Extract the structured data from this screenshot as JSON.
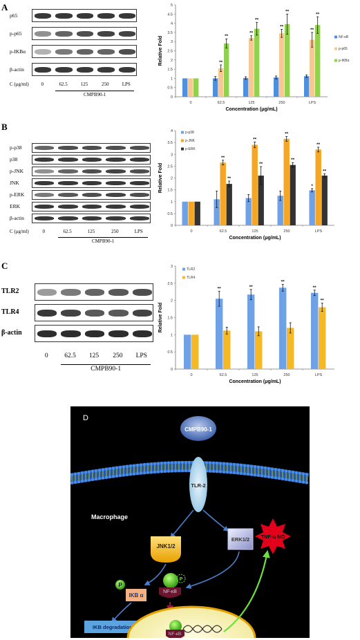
{
  "panelA": {
    "letter": "A",
    "blots": [
      {
        "label": "p65"
      },
      {
        "label": "p-p65"
      },
      {
        "label": "p-IKBα"
      },
      {
        "label": "β-actin"
      }
    ],
    "lanes": {
      "axis_label": "C (μg/ml)",
      "values": [
        "0",
        "62.5",
        "125",
        "250",
        "LPS"
      ],
      "group_label": "CMPB90-1"
    }
  },
  "panelB": {
    "letter": "B",
    "blots": [
      {
        "label": "p-p38"
      },
      {
        "label": "p38"
      },
      {
        "label": "p-JNK"
      },
      {
        "label": "JNK"
      },
      {
        "label": "p-ERK"
      },
      {
        "label": "ERK"
      },
      {
        "label": "β-actin"
      }
    ],
    "lanes": {
      "axis_label": "C (μg/ml)",
      "values": [
        "0",
        "62.5",
        "125",
        "250",
        "LPS"
      ],
      "group_label": "CMPB90-1"
    }
  },
  "panelC": {
    "letter": "C",
    "blots": [
      {
        "label": "TLR2"
      },
      {
        "label": "TLR4"
      },
      {
        "label": "β-actin"
      }
    ],
    "lanes": {
      "values": [
        "0",
        "62.5",
        "125",
        "250",
        "LPS"
      ],
      "group_label": "CMPB90-1"
    }
  },
  "chart_data": [
    {
      "type": "bar",
      "categories": [
        "0",
        "62.5",
        "125",
        "250",
        "LPS"
      ],
      "xlabel": "Concentration (μg/mL)",
      "ylabel": "Relative Fold",
      "ylim": [
        0,
        5
      ],
      "yticks": [
        "0",
        "0.5",
        "1",
        "1.5",
        "2",
        "2.5",
        "3",
        "3.5",
        "4",
        "4.5",
        "5"
      ],
      "legend_position": "right",
      "series": [
        {
          "name": "NF-κB",
          "color": "#4f8fe0",
          "values": [
            1,
            1.0,
            1.02,
            1.05,
            1.12
          ],
          "errors": [
            0,
            0.1,
            0.07,
            0.08,
            0.07
          ],
          "sig": [
            "",
            "",
            "",
            "",
            ""
          ]
        },
        {
          "name": "p-p65",
          "color": "#f5c896",
          "values": [
            1,
            1.55,
            3.2,
            3.45,
            3.1
          ],
          "errors": [
            0,
            0.18,
            0.12,
            0.22,
            0.4
          ],
          "sig": [
            "",
            "**",
            "**",
            "**",
            "**"
          ]
        },
        {
          "name": "p-IKBα",
          "color": "#92d050",
          "values": [
            1,
            2.9,
            3.7,
            3.95,
            3.9
          ],
          "errors": [
            0,
            0.25,
            0.35,
            0.55,
            0.45
          ],
          "sig": [
            "",
            "**",
            "**",
            "**",
            "**"
          ]
        }
      ]
    },
    {
      "type": "bar",
      "categories": [
        "0",
        "62.5",
        "125",
        "250",
        "LPS"
      ],
      "xlabel": "Concentration (μg/mL)",
      "ylabel": "Relative Fold",
      "ylim": [
        0,
        4
      ],
      "yticks": [
        "0",
        "0.5",
        "1",
        "1.5",
        "2",
        "2.5",
        "3",
        "3.5",
        "4"
      ],
      "legend_position": "top-left",
      "series": [
        {
          "name": "p-p38",
          "color": "#6ea1e6",
          "values": [
            1,
            1.1,
            1.15,
            1.25,
            1.48
          ],
          "errors": [
            0,
            0.35,
            0.15,
            0.2,
            0.07
          ],
          "sig": [
            "",
            "",
            "",
            "",
            "*"
          ]
        },
        {
          "name": "p-JNK",
          "color": "#f5a623",
          "values": [
            1,
            2.65,
            3.4,
            3.65,
            3.2
          ],
          "errors": [
            0,
            0.1,
            0.12,
            0.1,
            0.1
          ],
          "sig": [
            "",
            "**",
            "**",
            "**",
            "**"
          ]
        },
        {
          "name": "p-ERK",
          "color": "#333333",
          "values": [
            1,
            1.75,
            2.1,
            2.55,
            2.1
          ],
          "errors": [
            0,
            0.12,
            0.38,
            0.1,
            0.08
          ],
          "sig": [
            "",
            "**",
            "**",
            "**",
            "**"
          ]
        }
      ]
    },
    {
      "type": "bar",
      "categories": [
        "0",
        "62.5",
        "125",
        "250",
        "LPS"
      ],
      "xlabel": "Concentration (μg/mL)",
      "ylabel": "Relative Fold",
      "ylim": [
        0,
        3
      ],
      "yticks": [
        "0",
        "0.5",
        "1",
        "1.5",
        "2",
        "2.5",
        "3"
      ],
      "legend_position": "top-left",
      "series": [
        {
          "name": "TLR2",
          "color": "#6ea1e6",
          "values": [
            1,
            2.05,
            2.17,
            2.37,
            2.22
          ],
          "errors": [
            0,
            0.22,
            0.15,
            0.1,
            0.08
          ],
          "sig": [
            "",
            "**",
            "**",
            "**",
            "**"
          ]
        },
        {
          "name": "TLR4",
          "color": "#f5b827",
          "values": [
            1,
            1.12,
            1.1,
            1.2,
            1.8
          ],
          "errors": [
            0,
            0.1,
            0.13,
            0.15,
            0.12
          ],
          "sig": [
            "",
            "",
            "",
            "",
            "**"
          ]
        }
      ]
    }
  ],
  "diagram": {
    "letter": "D",
    "ligand": "CMPB90-1",
    "receptor": "TLR-2",
    "cell": "Macrophage",
    "jnk": "JNK1/2",
    "erk": "ERK1/2",
    "p_label": "P",
    "ikb": "IKB α",
    "nfkb": "NF-κB",
    "degradation": "IKB degradation",
    "nucleus_nfkb": "NF-κB",
    "output": "TNF-α NO",
    "colors": {
      "background": "#000000",
      "membrane": "#1e5aa8",
      "nucleus": "#f5f0b0",
      "output": "#e2001a"
    }
  }
}
